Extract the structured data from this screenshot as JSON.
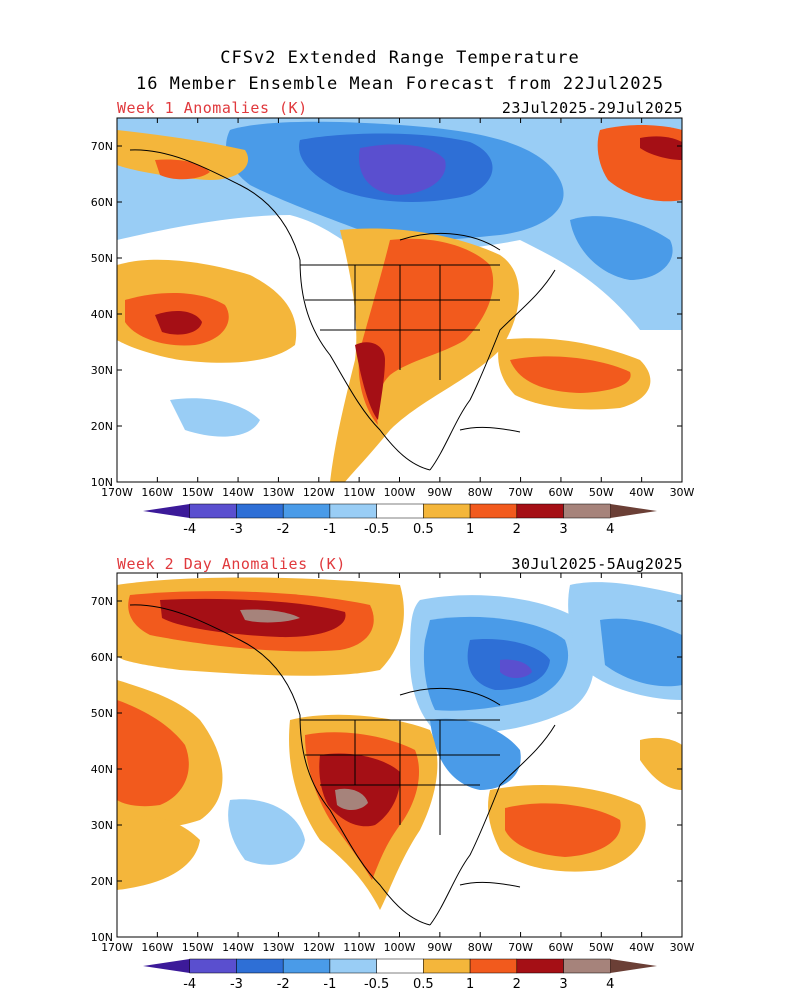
{
  "title_line1": "CFSv2 Extended Range Temperature",
  "title_line2": "16 Member Ensemble Mean Forecast from 22Jul2025",
  "panels": [
    {
      "label": "Week 1 Anomalies (K)",
      "dates": "23Jul2025-29Jul2025"
    },
    {
      "label": "Week 2 Day Anomalies (K)",
      "dates": "30Jul2025-5Aug2025"
    }
  ],
  "lat_ticks": [
    "70N",
    "60N",
    "50N",
    "40N",
    "30N",
    "20N",
    "10N"
  ],
  "lon_ticks": [
    "170W",
    "160W",
    "150W",
    "140W",
    "130W",
    "120W",
    "110W",
    "100W",
    "90W",
    "80W",
    "70W",
    "60W",
    "50W",
    "40W",
    "30W"
  ],
  "colorbar": {
    "colors": [
      "#3c1a99",
      "#5a4fcf",
      "#2e6fd6",
      "#4a9be8",
      "#99cdf5",
      "#ffffff",
      "#f4b63b",
      "#f25a1d",
      "#a50f15",
      "#a6837b",
      "#6b3f36"
    ],
    "labels": [
      "-4",
      "-3",
      "-2",
      "-1",
      "-0.5",
      "0.5",
      "1",
      "2",
      "3",
      "4"
    ]
  }
}
